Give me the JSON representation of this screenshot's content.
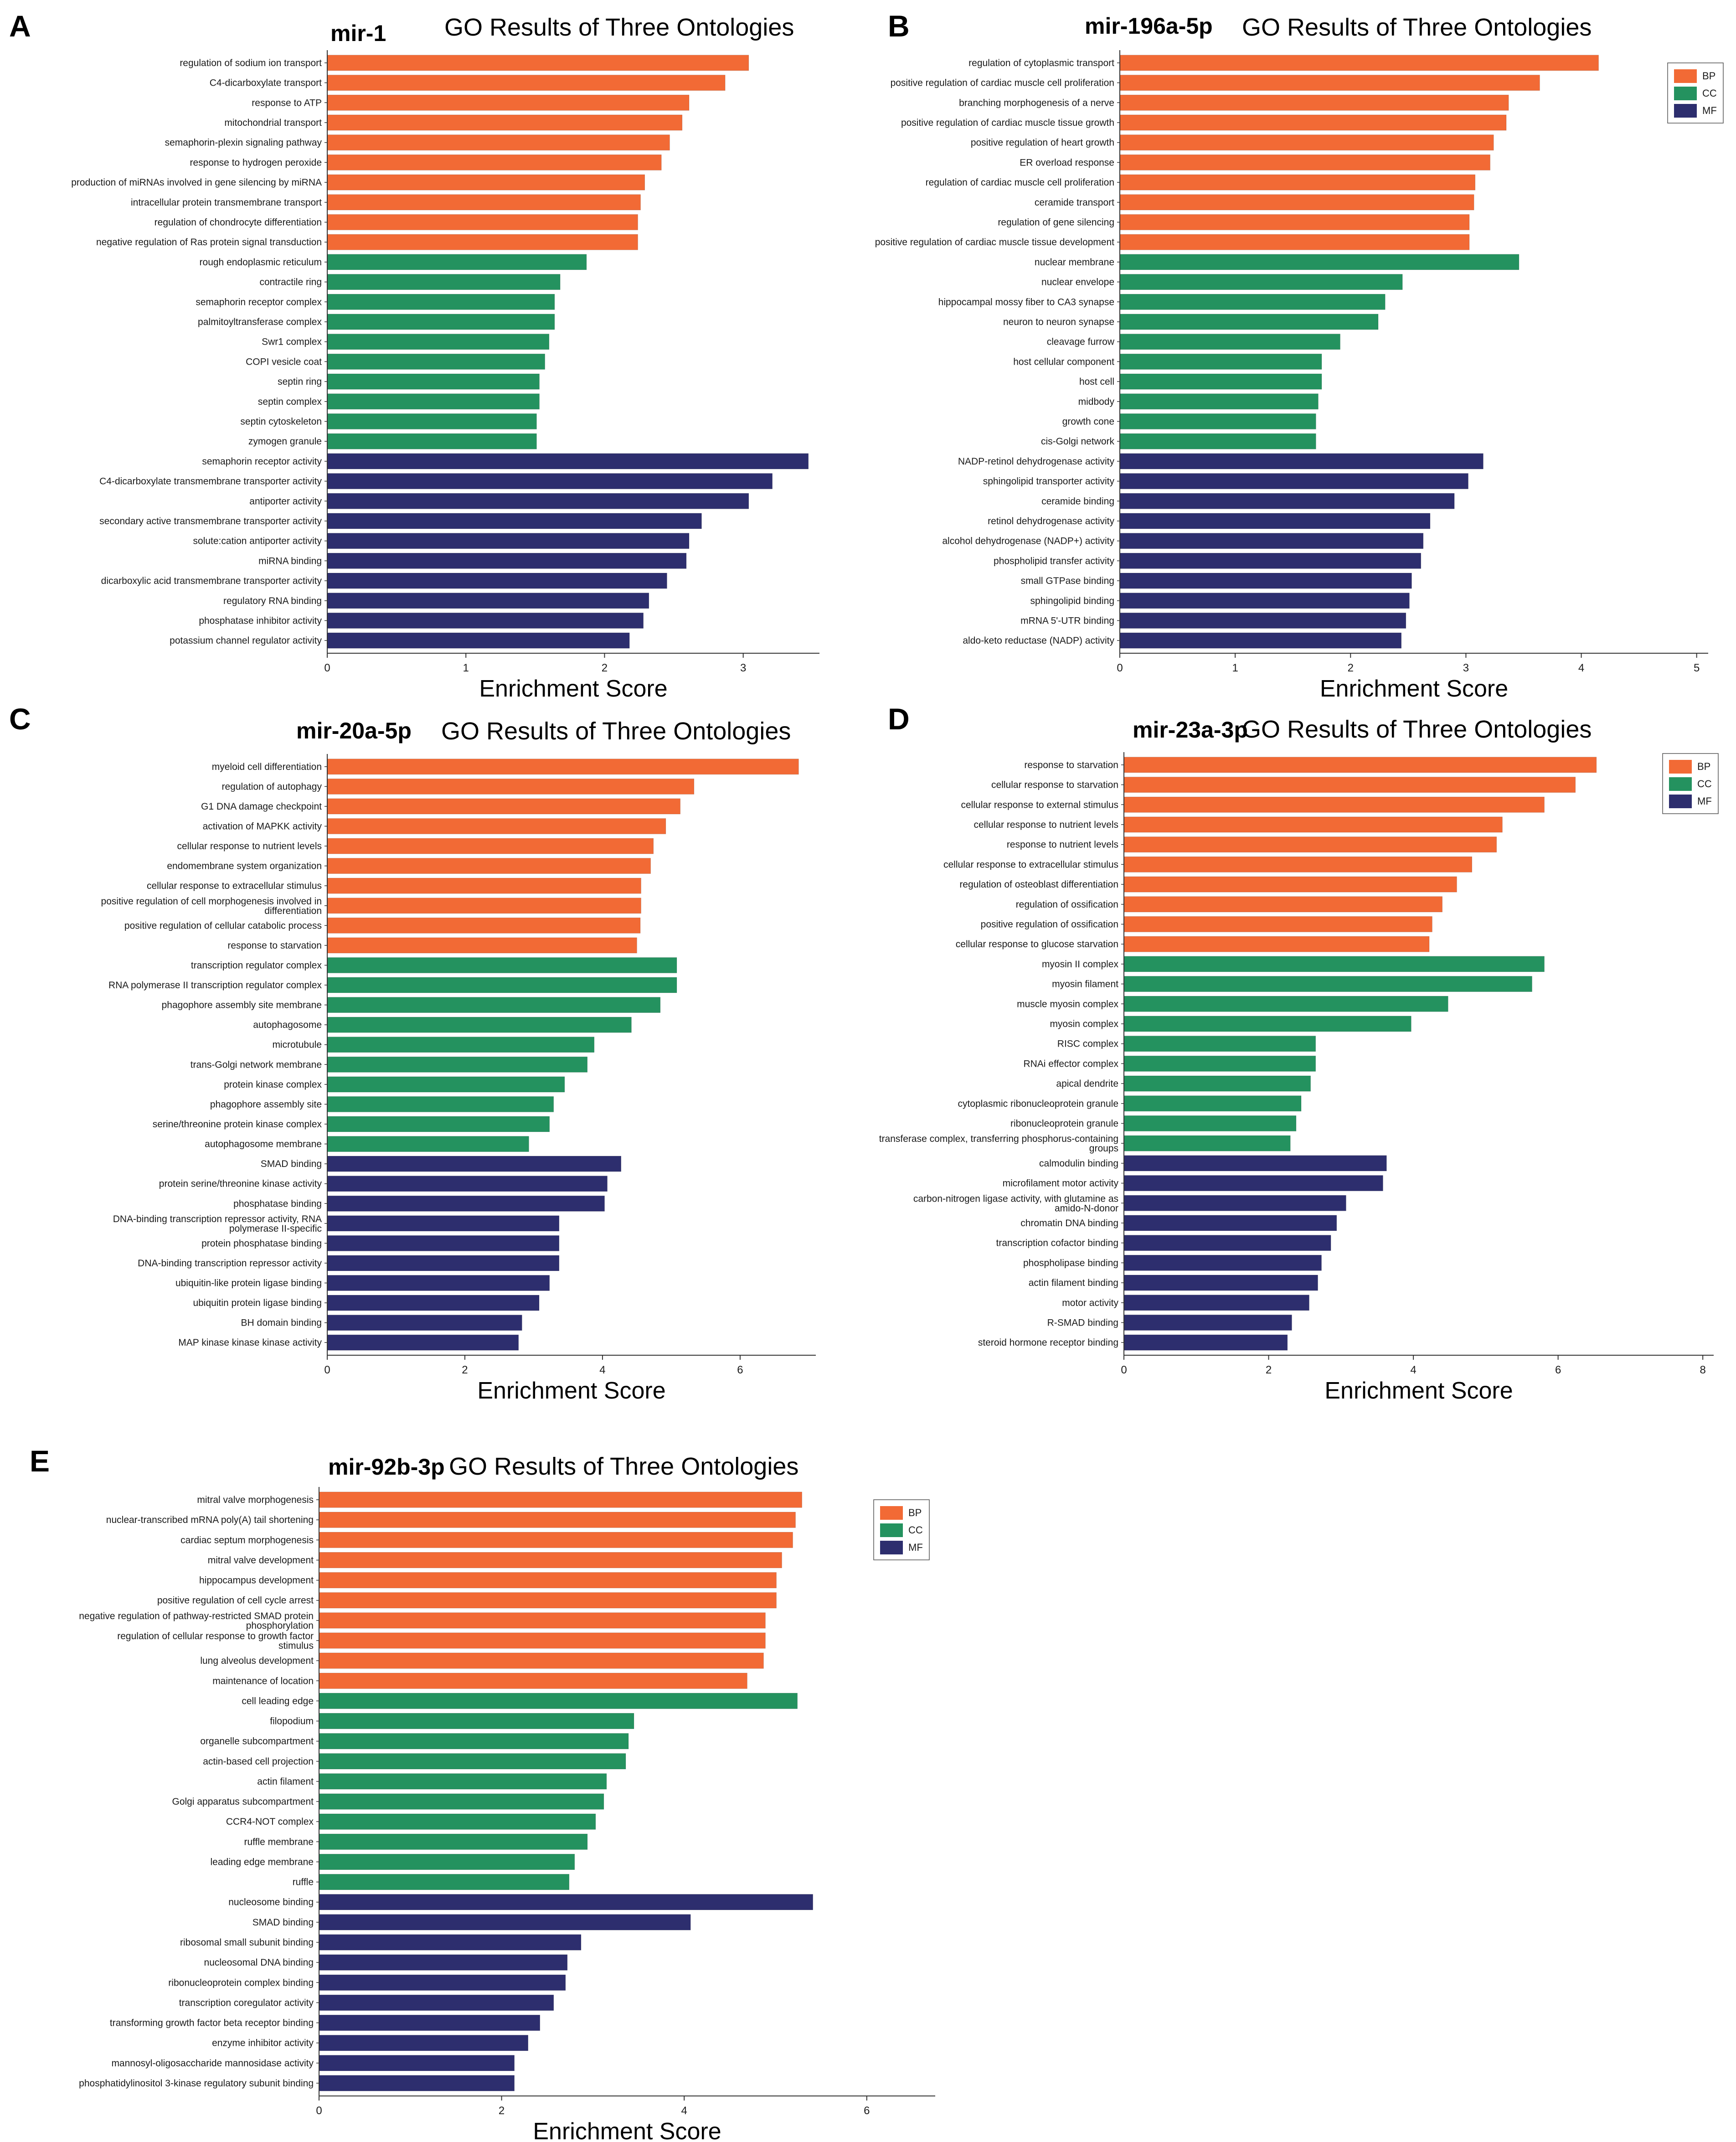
{
  "colors": {
    "BP": "#f26a35",
    "CC": "#24925f",
    "MF": "#2d2e6e"
  },
  "chart_data": [
    {
      "type": "bar",
      "panel": "A",
      "mirna": "mir-1",
      "title": "GO Results of Three Ontologies",
      "xlabel": "Enrichment Score",
      "xlim": [
        0,
        3.55
      ],
      "xticks": [
        0,
        1,
        2,
        3
      ],
      "legend": null,
      "categories": [
        "regulation of sodium ion transport",
        "C4-dicarboxylate transport",
        "response to ATP",
        "mitochondrial transport",
        "semaphorin-plexin signaling pathway",
        "response to hydrogen peroxide",
        "production of miRNAs involved in gene silencing by miRNA",
        "intracellular protein transmembrane transport",
        "regulation of chondrocyte differentiation",
        "negative regulation of Ras protein signal transduction",
        "rough endoplasmic reticulum",
        "contractile ring",
        "semaphorin receptor complex",
        "palmitoyltransferase complex",
        "Swr1 complex",
        "COPI vesicle coat",
        "septin ring",
        "septin complex",
        "septin cytoskeleton",
        "zymogen granule",
        "semaphorin receptor activity",
        "C4-dicarboxylate transmembrane transporter activity",
        "antiporter activity",
        "secondary active transmembrane transporter activity",
        "solute:cation antiporter activity",
        "miRNA binding",
        "dicarboxylic acid transmembrane transporter activity",
        "regulatory RNA binding",
        "phosphatase inhibitor activity",
        "potassium channel regulator activity"
      ],
      "values": [
        3.04,
        2.87,
        2.61,
        2.56,
        2.47,
        2.41,
        2.29,
        2.26,
        2.24,
        2.24,
        1.87,
        1.68,
        1.64,
        1.64,
        1.6,
        1.57,
        1.53,
        1.53,
        1.51,
        1.51,
        3.47,
        3.21,
        3.04,
        2.7,
        2.61,
        2.59,
        2.45,
        2.32,
        2.28,
        2.18
      ],
      "groups": [
        "BP",
        "BP",
        "BP",
        "BP",
        "BP",
        "BP",
        "BP",
        "BP",
        "BP",
        "BP",
        "CC",
        "CC",
        "CC",
        "CC",
        "CC",
        "CC",
        "CC",
        "CC",
        "CC",
        "CC",
        "MF",
        "MF",
        "MF",
        "MF",
        "MF",
        "MF",
        "MF",
        "MF",
        "MF",
        "MF"
      ]
    },
    {
      "type": "bar",
      "panel": "B",
      "mirna": "mir-196a-5p",
      "title": "GO Results of Three Ontologies",
      "xlabel": "Enrichment Score",
      "xlim": [
        0,
        5.1
      ],
      "xticks": [
        0,
        1,
        2,
        3,
        4,
        5
      ],
      "legend": [
        "BP",
        "CC",
        "MF"
      ],
      "categories": [
        "regulation of cytoplasmic transport",
        "positive regulation of cardiac muscle cell proliferation",
        "branching morphogenesis of a nerve",
        "positive regulation of cardiac muscle tissue growth",
        "positive regulation of heart growth",
        "ER overload response",
        "regulation of cardiac muscle cell proliferation",
        "ceramide transport",
        "regulation of gene silencing",
        "positive regulation of cardiac muscle tissue development",
        "nuclear membrane",
        "nuclear envelope",
        "hippocampal mossy fiber to CA3 synapse",
        "neuron to neuron synapse",
        "cleavage furrow",
        "host cellular component",
        "host cell",
        "midbody",
        "growth cone",
        "cis-Golgi network",
        "NADP-retinol dehydrogenase activity",
        "sphingolipid transporter activity",
        "ceramide binding",
        "retinol dehydrogenase activity",
        "alcohol dehydrogenase (NADP+) activity",
        "phospholipid transfer activity",
        "small GTPase binding",
        "sphingolipid binding",
        "mRNA 5'-UTR binding",
        "aldo-keto reductase (NADP) activity"
      ],
      "values": [
        4.15,
        3.64,
        3.37,
        3.35,
        3.24,
        3.21,
        3.08,
        3.07,
        3.03,
        3.03,
        3.46,
        2.45,
        2.3,
        2.24,
        1.91,
        1.75,
        1.75,
        1.72,
        1.7,
        1.7,
        3.15,
        3.02,
        2.9,
        2.69,
        2.63,
        2.61,
        2.53,
        2.51,
        2.48,
        2.44
      ],
      "groups": [
        "BP",
        "BP",
        "BP",
        "BP",
        "BP",
        "BP",
        "BP",
        "BP",
        "BP",
        "BP",
        "CC",
        "CC",
        "CC",
        "CC",
        "CC",
        "CC",
        "CC",
        "CC",
        "CC",
        "CC",
        "MF",
        "MF",
        "MF",
        "MF",
        "MF",
        "MF",
        "MF",
        "MF",
        "MF",
        "MF"
      ]
    },
    {
      "type": "bar",
      "panel": "C",
      "mirna": "mir-20a-5p",
      "title": "GO Results of Three Ontologies",
      "xlabel": "Enrichment Score",
      "xlim": [
        0,
        7.1
      ],
      "xticks": [
        0,
        2,
        4,
        6
      ],
      "legend": null,
      "categories": [
        "myeloid cell differentiation",
        "regulation of autophagy",
        "G1 DNA damage checkpoint",
        "activation of MAPKK activity",
        "cellular response to nutrient levels",
        "endomembrane system organization",
        "cellular response to extracellular stimulus",
        "positive regulation of cell morphogenesis involved in differentiation",
        "positive regulation of cellular catabolic process",
        "response to starvation",
        "transcription regulator complex",
        "RNA polymerase II transcription regulator complex",
        "phagophore assembly site membrane",
        "autophagosome",
        "microtubule",
        "trans-Golgi network membrane",
        "protein kinase complex",
        "phagophore assembly site",
        "serine/threonine protein kinase complex",
        "autophagosome membrane",
        "SMAD binding",
        "protein serine/threonine kinase activity",
        "phosphatase binding",
        "DNA-binding transcription repressor activity, RNA polymerase II-specific",
        "protein phosphatase binding",
        "DNA-binding transcription repressor activity",
        "ubiquitin-like protein ligase binding",
        "ubiquitin protein ligase binding",
        "BH domain binding",
        "MAP kinase kinase kinase activity"
      ],
      "values": [
        6.85,
        5.33,
        5.13,
        4.92,
        4.74,
        4.7,
        4.56,
        4.56,
        4.55,
        4.5,
        5.08,
        5.08,
        4.84,
        4.42,
        3.88,
        3.78,
        3.45,
        3.29,
        3.23,
        2.93,
        4.27,
        4.07,
        4.03,
        3.37,
        3.37,
        3.37,
        3.23,
        3.08,
        2.83,
        2.78
      ],
      "groups": [
        "BP",
        "BP",
        "BP",
        "BP",
        "BP",
        "BP",
        "BP",
        "BP",
        "BP",
        "BP",
        "CC",
        "CC",
        "CC",
        "CC",
        "CC",
        "CC",
        "CC",
        "CC",
        "CC",
        "CC",
        "MF",
        "MF",
        "MF",
        "MF",
        "MF",
        "MF",
        "MF",
        "MF",
        "MF",
        "MF"
      ]
    },
    {
      "type": "bar",
      "panel": "D",
      "mirna": "mir-23a-3p",
      "title": "GO Results of Three Ontologies",
      "xlabel": "Enrichment Score",
      "xlim": [
        0,
        8.15
      ],
      "xticks": [
        0,
        2,
        4,
        6,
        8
      ],
      "legend": [
        "BP",
        "CC",
        "MF"
      ],
      "categories": [
        "response to starvation",
        "cellular response to starvation",
        "cellular response to external stimulus",
        "cellular response to nutrient levels",
        "response to nutrient levels",
        "cellular response to extracellular stimulus",
        "regulation of osteoblast differentiation",
        "regulation of ossification",
        "positive regulation of ossification",
        "cellular response to glucose starvation",
        "myosin II complex",
        "myosin filament",
        "muscle myosin complex",
        "myosin complex",
        "RISC complex",
        "RNAi effector complex",
        "apical dendrite",
        "cytoplasmic ribonucleoprotein granule",
        "ribonucleoprotein granule",
        "transferase complex, transferring phosphorus-containing groups",
        "calmodulin binding",
        "microfilament motor activity",
        "carbon-nitrogen ligase activity, with glutamine as amido-N-donor",
        "chromatin DNA binding",
        "transcription cofactor binding",
        "phospholipase binding",
        "actin filament binding",
        "motor activity",
        "R-SMAD binding",
        "steroid hormone receptor binding"
      ],
      "values": [
        6.53,
        6.24,
        5.81,
        5.23,
        5.15,
        4.81,
        4.6,
        4.4,
        4.26,
        4.22,
        5.81,
        5.64,
        4.48,
        3.97,
        2.65,
        2.65,
        2.58,
        2.45,
        2.38,
        2.3,
        3.63,
        3.58,
        3.07,
        2.94,
        2.86,
        2.73,
        2.68,
        2.56,
        2.32,
        2.26
      ],
      "groups": [
        "BP",
        "BP",
        "BP",
        "BP",
        "BP",
        "BP",
        "BP",
        "BP",
        "BP",
        "BP",
        "CC",
        "CC",
        "CC",
        "CC",
        "CC",
        "CC",
        "CC",
        "CC",
        "CC",
        "CC",
        "MF",
        "MF",
        "MF",
        "MF",
        "MF",
        "MF",
        "MF",
        "MF",
        "MF",
        "MF"
      ]
    },
    {
      "type": "bar",
      "panel": "E",
      "mirna": "mir-92b-3p",
      "title": "GO Results of Three Ontologies",
      "xlabel": "Enrichment Score",
      "xlim": [
        0,
        6.75
      ],
      "xticks": [
        0,
        2,
        4,
        6
      ],
      "legend": [
        "BP",
        "CC",
        "MF"
      ],
      "categories": [
        "mitral valve morphogenesis",
        "nuclear-transcribed mRNA poly(A) tail shortening",
        "cardiac septum morphogenesis",
        "mitral valve development",
        "hippocampus development",
        "positive regulation of cell cycle arrest",
        "negative regulation of pathway-restricted SMAD protein phosphorylation",
        "regulation of cellular response to growth factor stimulus",
        "lung alveolus development",
        "maintenance of location",
        "cell leading edge",
        "filopodium",
        "organelle subcompartment",
        "actin-based cell projection",
        "actin filament",
        "Golgi apparatus subcompartment",
        "CCR4-NOT complex",
        "ruffle membrane",
        "leading edge membrane",
        "ruffle",
        "nucleosome binding",
        "SMAD binding",
        "ribosomal small subunit binding",
        "nucleosomal DNA binding",
        "ribonucleoprotein complex binding",
        "transcription coregulator activity",
        "transforming growth factor beta receptor binding",
        "enzyme inhibitor activity",
        "mannosyl-oligosaccharide mannosidase activity",
        "phosphatidylinositol 3-kinase regulatory subunit binding"
      ],
      "values": [
        5.29,
        5.22,
        5.19,
        5.07,
        5.01,
        5.01,
        4.89,
        4.89,
        4.87,
        4.69,
        5.24,
        3.45,
        3.39,
        3.36,
        3.15,
        3.12,
        3.03,
        2.94,
        2.8,
        2.74,
        5.41,
        4.07,
        2.87,
        2.72,
        2.7,
        2.57,
        2.42,
        2.29,
        2.14,
        2.14
      ],
      "groups": [
        "BP",
        "BP",
        "BP",
        "BP",
        "BP",
        "BP",
        "BP",
        "BP",
        "BP",
        "BP",
        "CC",
        "CC",
        "CC",
        "CC",
        "CC",
        "CC",
        "CC",
        "CC",
        "CC",
        "CC",
        "MF",
        "MF",
        "MF",
        "MF",
        "MF",
        "MF",
        "MF",
        "MF",
        "MF",
        "MF"
      ]
    }
  ]
}
